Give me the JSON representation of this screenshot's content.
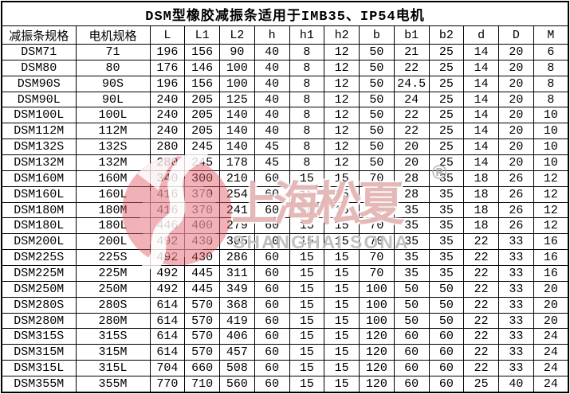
{
  "title": "DSM型橡胶减振条适用于IMB35、IP54电机",
  "table": {
    "columns": [
      "减振条规格",
      "电机规格",
      "L",
      "L1",
      "L2",
      "h",
      "h1",
      "h2",
      "b",
      "b1",
      "b2",
      "d",
      "D",
      "M"
    ],
    "rows": [
      [
        "DSM71",
        "71",
        "196",
        "156",
        "90",
        "40",
        "8",
        "12",
        "50",
        "21",
        "25",
        "14",
        "20",
        "6"
      ],
      [
        "DSM80",
        "80",
        "176",
        "146",
        "100",
        "40",
        "8",
        "12",
        "50",
        "22",
        "25",
        "14",
        "20",
        "8"
      ],
      [
        "DSM90S",
        "90S",
        "196",
        "156",
        "100",
        "40",
        "8",
        "12",
        "50",
        "24.5",
        "25",
        "14",
        "20",
        "8"
      ],
      [
        "DSM90L",
        "90L",
        "240",
        "205",
        "125",
        "40",
        "8",
        "12",
        "50",
        "24",
        "25",
        "14",
        "20",
        "8"
      ],
      [
        "DSM100L",
        "100L",
        "240",
        "205",
        "140",
        "40",
        "8",
        "12",
        "50",
        "22",
        "25",
        "14",
        "20",
        "10"
      ],
      [
        "DSM112M",
        "112M",
        "240",
        "205",
        "140",
        "40",
        "8",
        "12",
        "50",
        "22",
        "25",
        "14",
        "20",
        "10"
      ],
      [
        "DSM132S",
        "132S",
        "280",
        "245",
        "140",
        "45",
        "8",
        "12",
        "50",
        "20",
        "25",
        "14",
        "20",
        "10"
      ],
      [
        "DSM132M",
        "132M",
        "280",
        "245",
        "178",
        "45",
        "8",
        "12",
        "50",
        "20",
        "25",
        "14",
        "20",
        "10"
      ],
      [
        "DSM160M",
        "160M",
        "340",
        "300",
        "210",
        "60",
        "15",
        "15",
        "70",
        "28",
        "35",
        "18",
        "26",
        "12"
      ],
      [
        "DSM160L",
        "160L",
        "416",
        "370",
        "254",
        "60",
        "15",
        "15",
        "70",
        "28",
        "35",
        "18",
        "26",
        "12"
      ],
      [
        "DSM180M",
        "180M",
        "416",
        "370",
        "241",
        "60",
        "15",
        "15",
        "70",
        "35",
        "35",
        "18",
        "26",
        "12"
      ],
      [
        "DSM180L",
        "180L",
        "446",
        "400",
        "279",
        "60",
        "15",
        "15",
        "70",
        "35",
        "35",
        "18",
        "26",
        "12"
      ],
      [
        "DSM200L",
        "200L",
        "492",
        "430",
        "305",
        "60",
        "15",
        "15",
        "70",
        "35",
        "35",
        "22",
        "33",
        "16"
      ],
      [
        "DSM225S",
        "225S",
        "492",
        "430",
        "286",
        "60",
        "15",
        "15",
        "70",
        "35",
        "35",
        "22",
        "33",
        "16"
      ],
      [
        "DSM225M",
        "225M",
        "492",
        "445",
        "311",
        "60",
        "15",
        "15",
        "70",
        "35",
        "35",
        "22",
        "33",
        "16"
      ],
      [
        "DSM250M",
        "250M",
        "492",
        "445",
        "349",
        "60",
        "15",
        "15",
        "100",
        "50",
        "50",
        "22",
        "33",
        "20"
      ],
      [
        "DSM280S",
        "280S",
        "614",
        "570",
        "368",
        "60",
        "15",
        "15",
        "100",
        "50",
        "50",
        "22",
        "33",
        "20"
      ],
      [
        "DSM280M",
        "280M",
        "614",
        "570",
        "419",
        "60",
        "15",
        "15",
        "100",
        "50",
        "50",
        "22",
        "33",
        "20"
      ],
      [
        "DSM315S",
        "315S",
        "614",
        "570",
        "406",
        "60",
        "15",
        "15",
        "120",
        "60",
        "60",
        "22",
        "33",
        "24"
      ],
      [
        "DSM315M",
        "315M",
        "614",
        "570",
        "457",
        "60",
        "15",
        "15",
        "120",
        "60",
        "60",
        "22",
        "33",
        "24"
      ],
      [
        "DSM315L",
        "315L",
        "704",
        "660",
        "508",
        "60",
        "15",
        "15",
        "120",
        "60",
        "60",
        "22",
        "33",
        "24"
      ],
      [
        "DSM355M",
        "355M",
        "770",
        "710",
        "560",
        "60",
        "15",
        "15",
        "120",
        "60",
        "60",
        "25",
        "40",
        "24"
      ]
    ]
  },
  "watermark": {
    "brand_cn": "上海松夏",
    "brand_en": "SHANGHAI SONA",
    "registered_mark": "®",
    "logo_color": "#e05a66"
  }
}
